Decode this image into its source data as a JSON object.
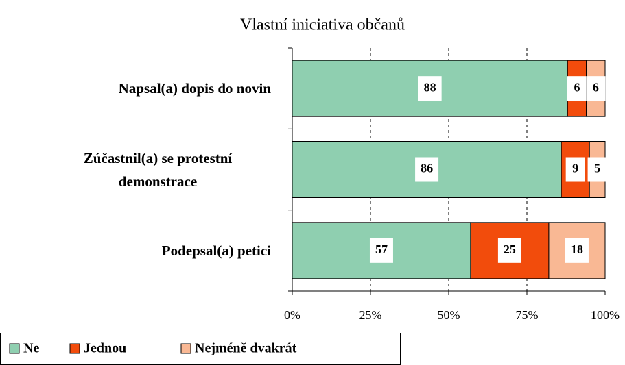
{
  "chart_data": {
    "type": "stacked_barh",
    "title": "Vlastní iniciativa občanů",
    "categories": [
      "Napsal(a) dopis do novin",
      "Zúčastnil(a) se protestní demonstrace",
      "Podepsal(a) petici"
    ],
    "series": [
      {
        "name": "Ne",
        "color": "#8fcfb0",
        "values": [
          88,
          86,
          57
        ]
      },
      {
        "name": "Jednou",
        "color": "#f24c0c",
        "values": [
          6,
          9,
          25
        ]
      },
      {
        "name": "Nejméně dvakrát",
        "color": "#f9b894",
        "values": [
          6,
          5,
          18
        ]
      }
    ],
    "xlim": [
      0,
      100
    ],
    "xticks": [
      {
        "value": 0,
        "label": "0%"
      },
      {
        "value": 25,
        "label": "25%"
      },
      {
        "value": 50,
        "label": "50%"
      },
      {
        "value": 75,
        "label": "75%"
      },
      {
        "value": 100,
        "label": "100%"
      }
    ],
    "grid": true,
    "legend": "bottom-left"
  }
}
